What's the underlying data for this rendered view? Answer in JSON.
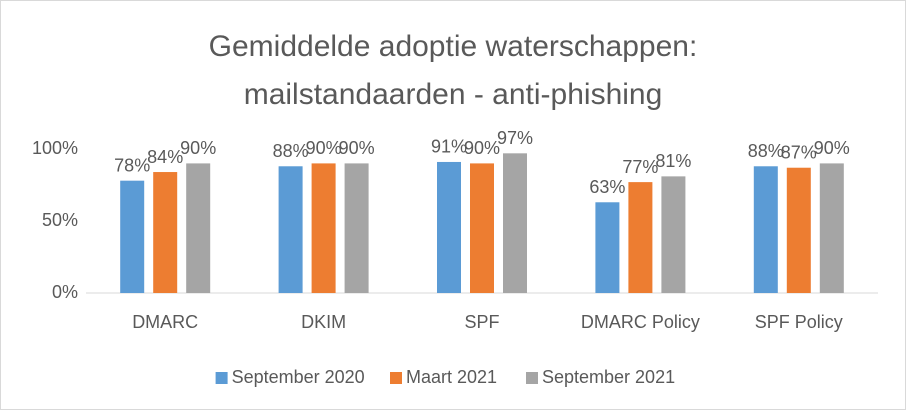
{
  "chart_data": {
    "type": "bar",
    "title": [
      "Gemiddelde adoptie waterschappen:",
      "mailstandaarden - anti-phishing"
    ],
    "categories": [
      "DMARC",
      "DKIM",
      "SPF",
      "DMARC Policy",
      "SPF Policy"
    ],
    "series": [
      {
        "name": "September 2020",
        "color": "#5b9bd5",
        "values": [
          78,
          88,
          91,
          63,
          88
        ],
        "value_labels": [
          "78%",
          "88%",
          "91%",
          "63%",
          "88%"
        ]
      },
      {
        "name": "Maart 2021",
        "color": "#ed7d31",
        "values": [
          84,
          90,
          90,
          77,
          87
        ],
        "value_labels": [
          "84%",
          "90%",
          "90%",
          "77%",
          "87%"
        ]
      },
      {
        "name": "September 2021",
        "color": "#a5a5a5",
        "values": [
          90,
          90,
          97,
          81,
          90
        ],
        "value_labels": [
          "90%",
          "90%",
          "97%",
          "81%",
          "90%"
        ]
      }
    ],
    "ylim": [
      0,
      100
    ],
    "yticks": [
      {
        "value": 0,
        "label": "0%"
      },
      {
        "value": 50,
        "label": "50%"
      },
      {
        "value": 100,
        "label": "100%"
      }
    ],
    "grid": false,
    "legend": "bottom"
  }
}
